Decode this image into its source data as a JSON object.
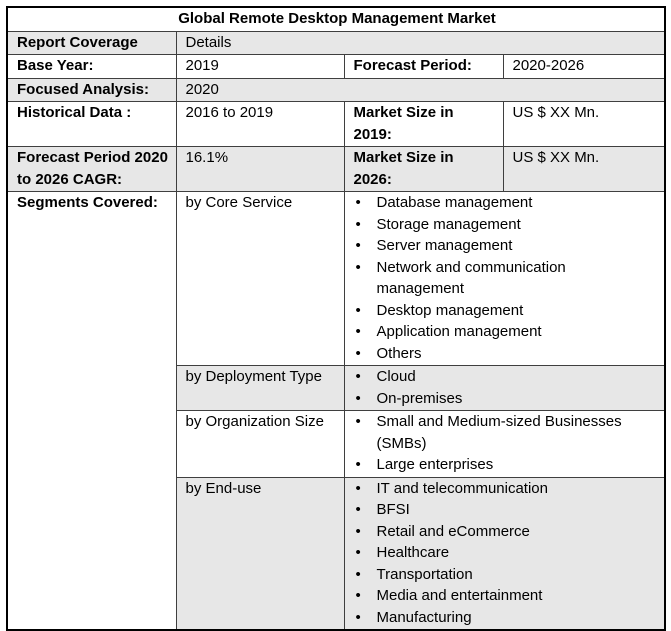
{
  "title": "Global Remote Desktop Management Market",
  "colors": {
    "row_shade": "#e7e7e7",
    "outer_border": "#000000",
    "inner_border": "#3f3f3f"
  },
  "fields": {
    "report_coverage": {
      "label": "Report Coverage",
      "value": "Details"
    },
    "base_year": {
      "label": "Base Year:",
      "value": "2019"
    },
    "forecast_period": {
      "label": "Forecast Period:",
      "value": "2020-2026"
    },
    "focused_analysis": {
      "label": "Focused Analysis:",
      "value": "2020"
    },
    "historical_data": {
      "label": "Historical Data :",
      "value": "2016 to 2019"
    },
    "market_size_2019": {
      "label": "Market Size in 2019:",
      "value": "US $ XX Mn."
    },
    "forecast_cagr": {
      "label": "Forecast Period 2020 to 2026 CAGR:",
      "value": "16.1%"
    },
    "market_size_2026": {
      "label": "Market Size in 2026:",
      "value": "US $ XX Mn."
    },
    "segments_covered": {
      "label": "Segments Covered:"
    }
  },
  "segments": [
    {
      "group": "by Core Service",
      "items": [
        "Database management",
        "Storage management",
        "Server management",
        "Network and communication management",
        "Desktop management",
        "Application management",
        "Others"
      ]
    },
    {
      "group": "by Deployment Type",
      "items": [
        "Cloud",
        "On-premises"
      ]
    },
    {
      "group": "by Organization Size",
      "items": [
        "Small and Medium-sized Businesses (SMBs)",
        "Large enterprises"
      ]
    },
    {
      "group": "by End-use",
      "items": [
        "IT and telecommunication",
        "BFSI",
        "Retail and eCommerce",
        "Healthcare",
        "Transportation",
        "Media and entertainment",
        "Manufacturing"
      ]
    }
  ]
}
